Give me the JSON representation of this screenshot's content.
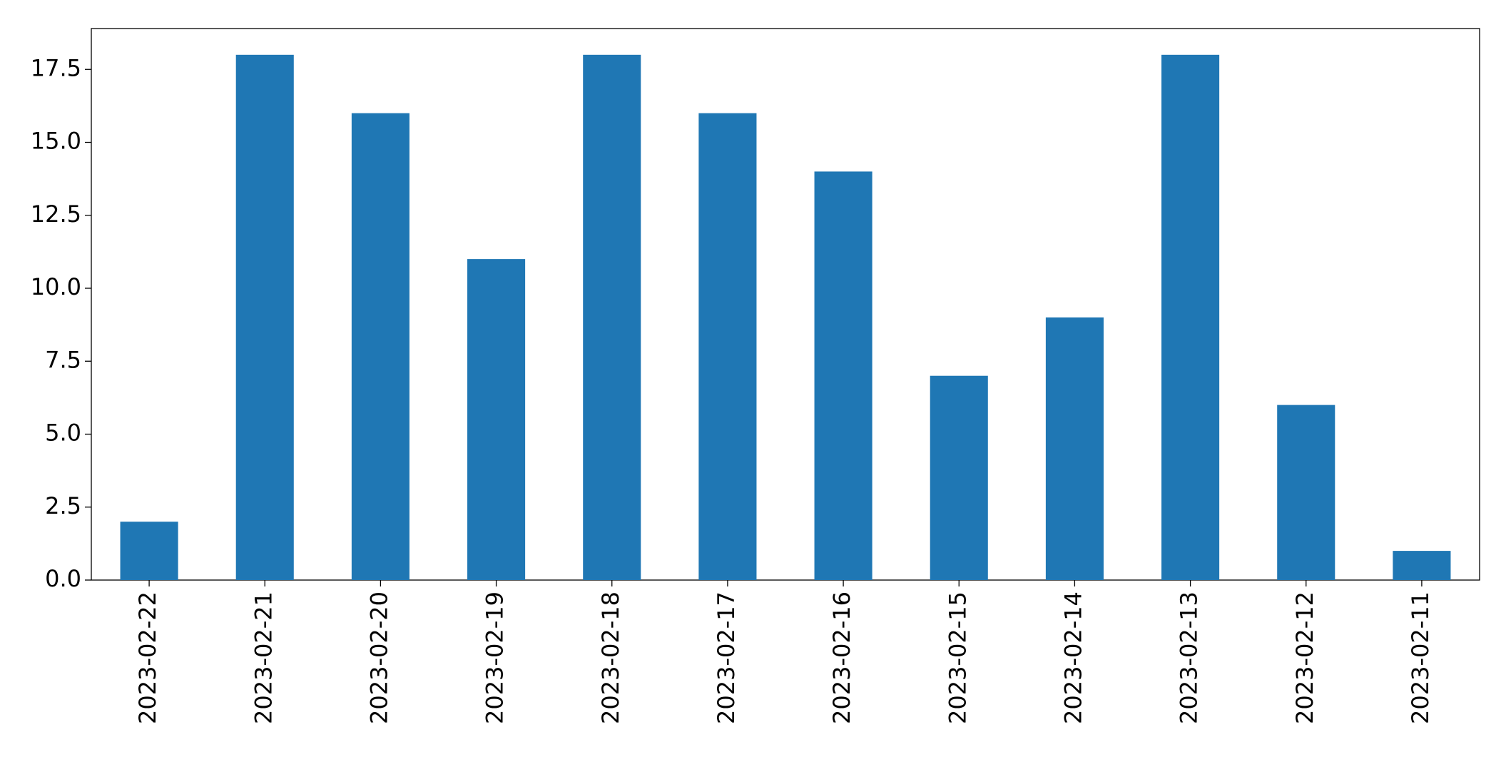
{
  "chart_data": {
    "type": "bar",
    "categories": [
      "2023-02-22",
      "2023-02-21",
      "2023-02-20",
      "2023-02-19",
      "2023-02-18",
      "2023-02-17",
      "2023-02-16",
      "2023-02-15",
      "2023-02-14",
      "2023-02-13",
      "2023-02-12",
      "2023-02-11"
    ],
    "values": [
      2,
      18,
      16,
      11,
      18,
      16,
      14,
      7,
      9,
      18,
      6,
      1
    ],
    "color": "#1f77b4",
    "ylim": [
      0,
      18.9
    ],
    "yticks": [
      {
        "value": 0,
        "label": "0.0"
      },
      2.5,
      {
        "value": 5,
        "label": "5.0"
      },
      7.5,
      {
        "value": 10,
        "label": "10.0"
      },
      12.5,
      {
        "value": 15,
        "label": "15.0"
      },
      17.5
    ],
    "grid": false
  }
}
